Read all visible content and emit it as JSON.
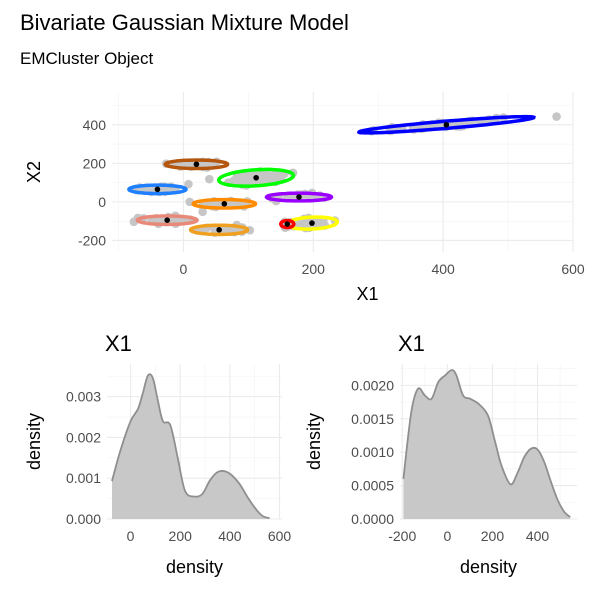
{
  "chart_data": [
    {
      "type": "scatter",
      "title": "Bivariate Gaussian Mixture Model",
      "subtitle": "EMCluster Object",
      "xlabel": "X1",
      "ylabel": "X2",
      "xlim": [
        -110,
        600
      ],
      "ylim": [
        -260,
        570
      ],
      "xticks": [
        0,
        200,
        400,
        600
      ],
      "yticks": [
        -200,
        0,
        200,
        400
      ],
      "grid": true,
      "clusters": [
        {
          "color": "#0000ff",
          "center": [
            405,
            400
          ],
          "rx": 140,
          "ry": 18,
          "angle_deg": 16
        },
        {
          "color": "#00ff00",
          "center": [
            112,
            125
          ],
          "rx": 60,
          "ry": 40,
          "angle_deg": 22
        },
        {
          "color": "#b5560f",
          "center": [
            20,
            195
          ],
          "rx": 48,
          "ry": 22,
          "angle_deg": 0
        },
        {
          "color": "#1f7fff",
          "center": [
            -40,
            65
          ],
          "rx": 44,
          "ry": 22,
          "angle_deg": 0
        },
        {
          "color": "#ff8c00",
          "center": [
            63,
            -10
          ],
          "rx": 48,
          "ry": 22,
          "angle_deg": 0
        },
        {
          "color": "#9a00ff",
          "center": [
            178,
            25
          ],
          "rx": 50,
          "ry": 20,
          "angle_deg": 0
        },
        {
          "color": "#e8897a",
          "center": [
            -25,
            -95
          ],
          "rx": 46,
          "ry": 22,
          "angle_deg": 0
        },
        {
          "color": "#f0a020",
          "center": [
            55,
            -145
          ],
          "rx": 44,
          "ry": 24,
          "angle_deg": 0
        },
        {
          "color": "#ffff00",
          "center": [
            198,
            -110
          ],
          "rx": 40,
          "ry": 30,
          "angle_deg": 20
        },
        {
          "color": "#ff0000",
          "center": [
            160,
            -115
          ],
          "rx": 10,
          "ry": 18,
          "angle_deg": 0
        }
      ]
    },
    {
      "type": "area",
      "title": "X1",
      "xlabel": "density",
      "ylabel": "density",
      "xlim": [
        -95,
        610
      ],
      "ylim": [
        0,
        0.0038
      ],
      "xticks": [
        0,
        200,
        400,
        600
      ],
      "yticks": [
        0.0,
        0.001,
        0.002,
        0.003
      ],
      "ytick_labels": [
        "0.000",
        "0.001",
        "0.002",
        "0.003"
      ],
      "grid": true,
      "x": [
        -75,
        -40,
        0,
        30,
        50,
        70,
        90,
        110,
        130,
        160,
        190,
        220,
        260,
        290,
        320,
        350,
        380,
        410,
        440,
        470,
        500,
        530,
        560
      ],
      "values": [
        0.00093,
        0.0017,
        0.0024,
        0.0027,
        0.0031,
        0.00352,
        0.00345,
        0.0029,
        0.0024,
        0.0023,
        0.0015,
        0.00068,
        0.00055,
        0.00062,
        0.00095,
        0.00115,
        0.00117,
        0.00106,
        0.00085,
        0.00055,
        0.00028,
        8e-05,
        2e-05
      ]
    },
    {
      "type": "area",
      "title": "X1",
      "xlabel": "density",
      "ylabel": "density",
      "xlim": [
        -210,
        575
      ],
      "ylim": [
        0,
        0.00232
      ],
      "xticks": [
        -200,
        0,
        200,
        400
      ],
      "yticks": [
        0.0,
        0.0005,
        0.001,
        0.0015,
        0.002
      ],
      "ytick_labels": [
        "0.0000",
        "0.0005",
        "0.0010",
        "0.0015",
        "0.0020"
      ],
      "grid": true,
      "x": [
        -195,
        -160,
        -130,
        -100,
        -70,
        -40,
        -10,
        20,
        40,
        70,
        100,
        140,
        180,
        210,
        240,
        280,
        310,
        340,
        370,
        400,
        430,
        460,
        490,
        520,
        545
      ],
      "values": [
        0.0006,
        0.0016,
        0.00195,
        0.00185,
        0.0018,
        0.00205,
        0.00215,
        0.00223,
        0.00215,
        0.00185,
        0.0018,
        0.00172,
        0.00155,
        0.00118,
        0.0008,
        0.00052,
        0.00068,
        0.00092,
        0.00105,
        0.00104,
        0.00085,
        0.00055,
        0.00028,
        0.0001,
        3e-05
      ]
    }
  ]
}
